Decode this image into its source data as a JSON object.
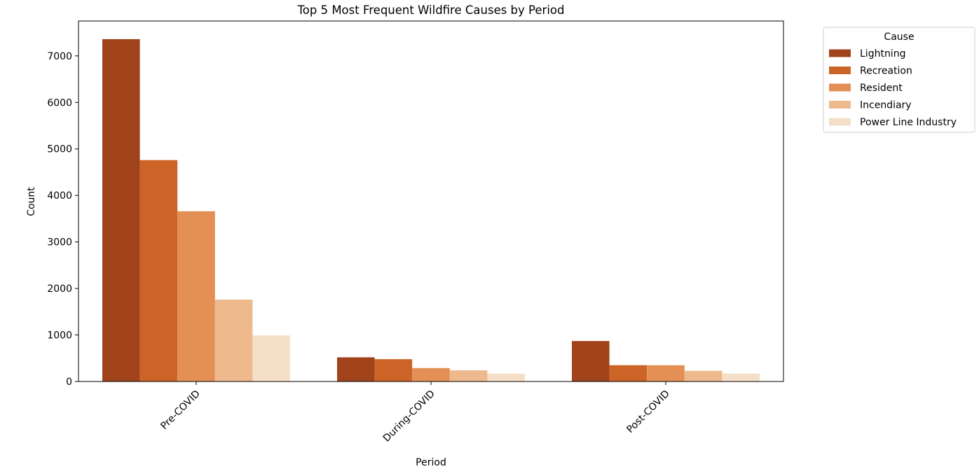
{
  "chart_data": {
    "type": "bar",
    "title": "Top 5 Most Frequent Wildfire Causes by Period",
    "xlabel": "Period",
    "ylabel": "Count",
    "categories": [
      "Pre-COVID",
      "During-COVID",
      "Post-COVID"
    ],
    "series": [
      {
        "name": "Lightning",
        "color": "#a0431a",
        "values": [
          7360,
          520,
          870
        ]
      },
      {
        "name": "Recreation",
        "color": "#cc6428",
        "values": [
          4760,
          480,
          350
        ]
      },
      {
        "name": "Resident",
        "color": "#e38f55",
        "values": [
          3660,
          290,
          350
        ]
      },
      {
        "name": "Incendiary",
        "color": "#edb98d",
        "values": [
          1760,
          240,
          230
        ]
      },
      {
        "name": "Power Line Industry",
        "color": "#f6dfc8",
        "values": [
          990,
          170,
          170
        ]
      }
    ],
    "ylim": [
      0,
      7750
    ],
    "yticks": [
      0,
      1000,
      2000,
      3000,
      4000,
      5000,
      6000,
      7000
    ],
    "grid": false,
    "legend": {
      "title": "Cause",
      "placement": "outside-top-right"
    }
  }
}
